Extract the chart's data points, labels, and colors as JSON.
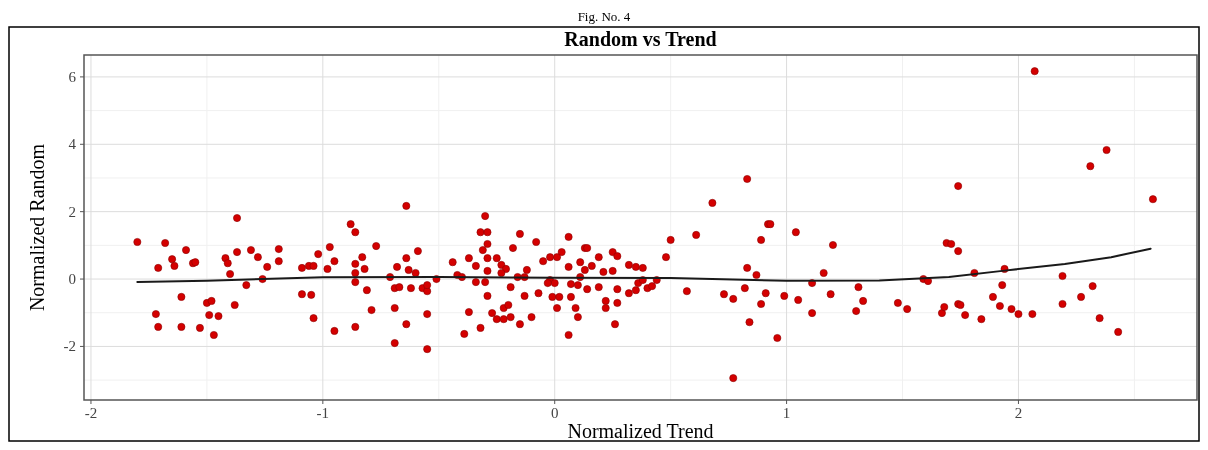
{
  "chart_data": {
    "type": "scatter",
    "title": "Random vs Trend",
    "xlabel": "Normalized Trend",
    "ylabel": "Normalized Random",
    "annotations": [
      "Fig. No. 4"
    ],
    "xlim": [
      -2.03,
      2.77
    ],
    "ylim": [
      -3.59,
      6.65
    ],
    "xticks": [
      -2,
      -1,
      0,
      1,
      2
    ],
    "yticks": [
      -2,
      0,
      2,
      4,
      6
    ],
    "grid": true,
    "marker": "circle",
    "series": [
      {
        "type": "scatter",
        "color": "#d40000",
        "x": [
          -1.8,
          -1.68,
          -1.71,
          -1.65,
          -1.64,
          -1.59,
          -1.56,
          -1.55,
          -1.61,
          -1.72,
          -1.71,
          -1.61,
          -1.53,
          -1.5,
          -1.48,
          -1.49,
          -1.45,
          -1.47,
          -1.37,
          -1.42,
          -1.41,
          -1.4,
          -1.37,
          -1.31,
          -1.28,
          -1.24,
          -1.19,
          -1.19,
          -1.26,
          -1.33,
          -1.38,
          -1.09,
          -1.05,
          -1.04,
          -0.95,
          -1.09,
          -1.06,
          -1.04,
          -1.02,
          -0.97,
          -0.98,
          -0.95,
          -0.88,
          -0.86,
          -0.83,
          -0.86,
          -0.82,
          -0.86,
          -0.86,
          -0.81,
          -0.79,
          -0.86,
          -0.77,
          -0.64,
          -0.59,
          -0.64,
          -0.68,
          -0.63,
          -0.6,
          -0.71,
          -0.69,
          -0.67,
          -0.62,
          -0.57,
          -0.55,
          -0.55,
          -0.51,
          -0.69,
          -0.64,
          -0.55,
          -0.69,
          -0.55,
          -0.44,
          -0.37,
          -0.34,
          -0.42,
          -0.4,
          -0.34,
          -0.3,
          -0.37,
          -0.39,
          -0.32,
          -0.3,
          -0.32,
          -0.29,
          -0.29,
          -0.31,
          -0.29,
          -0.25,
          -0.29,
          -0.23,
          -0.21,
          -0.23,
          -0.19,
          -0.29,
          -0.22,
          -0.2,
          -0.27,
          -0.25,
          -0.22,
          -0.19,
          -0.15,
          -0.18,
          -0.15,
          -0.08,
          -0.12,
          -0.16,
          -0.13,
          -0.13,
          -0.1,
          -0.07,
          -0.05,
          -0.02,
          0.03,
          0.01,
          0.06,
          -0.02,
          0.0,
          -0.03,
          -0.01,
          0.02,
          0.01,
          0.06,
          0.07,
          0.1,
          0.07,
          0.09,
          0.1,
          0.06,
          0.13,
          0.14,
          0.11,
          0.13,
          0.11,
          0.14,
          0.16,
          0.19,
          0.21,
          0.19,
          0.22,
          0.22,
          0.25,
          0.27,
          0.25,
          0.27,
          0.27,
          0.26,
          0.32,
          0.35,
          0.38,
          0.36,
          0.38,
          0.32,
          0.35,
          0.4,
          0.42,
          0.44,
          0.48,
          0.5,
          0.61,
          0.68,
          0.83,
          0.57,
          0.73,
          0.77,
          0.82,
          0.83,
          0.87,
          0.89,
          0.92,
          0.93,
          0.91,
          0.89,
          0.84,
          0.96,
          0.77,
          0.99,
          1.04,
          1.05,
          1.11,
          1.11,
          1.16,
          1.19,
          1.2,
          1.31,
          1.33,
          1.3,
          1.48,
          1.52,
          1.59,
          1.61,
          1.67,
          1.68,
          1.74,
          1.69,
          1.71,
          1.74,
          1.74,
          2.07,
          2.38,
          2.31,
          2.58,
          1.81,
          1.94,
          1.93,
          1.89,
          1.92,
          1.97,
          2.0,
          2.06,
          1.84,
          1.77,
          1.75,
          2.19,
          2.19,
          2.32,
          2.27,
          2.35,
          2.43
        ],
        "values": [
          1.1,
          1.07,
          0.33,
          0.59,
          0.39,
          0.86,
          0.47,
          0.5,
          -0.53,
          -1.04,
          -1.42,
          -1.42,
          -1.45,
          -0.71,
          -0.65,
          -1.07,
          -1.1,
          -1.66,
          1.81,
          0.62,
          0.47,
          0.15,
          0.8,
          0.86,
          0.65,
          0.36,
          0.53,
          0.89,
          0.0,
          -0.18,
          -0.77,
          -0.45,
          -0.47,
          -1.16,
          -1.54,
          0.33,
          0.39,
          0.39,
          0.74,
          0.95,
          0.3,
          0.53,
          1.63,
          1.39,
          0.65,
          0.45,
          0.3,
          0.18,
          -0.09,
          -0.33,
          -0.92,
          -1.42,
          0.98,
          2.17,
          0.83,
          0.62,
          0.36,
          0.27,
          0.18,
          0.06,
          -0.27,
          -0.24,
          -0.27,
          -0.27,
          -0.36,
          -0.18,
          0.0,
          -0.86,
          -1.34,
          -1.04,
          -1.9,
          -2.08,
          0.5,
          0.62,
          0.39,
          0.12,
          0.06,
          -0.09,
          -0.09,
          -0.98,
          -1.63,
          -1.45,
          1.87,
          1.39,
          1.39,
          1.04,
          0.86,
          0.62,
          0.62,
          0.24,
          0.42,
          0.3,
          0.18,
          -0.24,
          -0.5,
          -0.86,
          -0.77,
          -1.01,
          -1.19,
          -1.19,
          -1.13,
          -1.34,
          0.92,
          1.34,
          1.1,
          0.27,
          0.06,
          0.06,
          -0.5,
          -1.13,
          -0.42,
          0.53,
          0.65,
          0.8,
          0.65,
          1.25,
          -0.03,
          -0.12,
          -0.12,
          -0.53,
          -0.53,
          -0.86,
          0.36,
          -0.15,
          -0.18,
          -0.53,
          -0.86,
          -1.13,
          -1.66,
          0.92,
          0.92,
          0.5,
          0.27,
          0.06,
          -0.3,
          0.39,
          0.65,
          0.21,
          -0.24,
          -0.65,
          -0.86,
          0.8,
          0.68,
          0.24,
          -0.3,
          -0.71,
          -1.34,
          0.42,
          0.36,
          0.33,
          -0.12,
          -0.03,
          -0.42,
          -0.33,
          -0.27,
          -0.21,
          -0.03,
          0.65,
          1.16,
          1.31,
          2.26,
          2.97,
          -0.36,
          -0.45,
          -0.59,
          -0.27,
          0.33,
          0.12,
          1.16,
          1.63,
          1.63,
          -0.42,
          -0.74,
          -1.28,
          -1.75,
          -2.94,
          -0.5,
          1.39,
          -0.62,
          -0.12,
          -1.01,
          0.18,
          -0.45,
          1.01,
          -0.24,
          -0.65,
          -0.95,
          -0.71,
          -0.89,
          0.0,
          -0.06,
          -1.01,
          -0.83,
          -0.74,
          1.07,
          1.04,
          0.83,
          2.76,
          6.17,
          3.83,
          3.35,
          2.37,
          0.18,
          0.3,
          -0.18,
          -0.53,
          -0.8,
          -0.89,
          -1.04,
          -1.04,
          -1.19,
          -1.07,
          -0.77,
          0.09,
          -0.74,
          -0.21,
          -0.53,
          -1.16,
          -1.57
        ]
      },
      {
        "type": "line",
        "color": "#1a1a1a",
        "marker": "none",
        "x": [
          -1.8,
          -1.5,
          -1.0,
          -0.5,
          0,
          0.5,
          1.0,
          1.4,
          1.7,
          1.94,
          2.2,
          2.4,
          2.57
        ],
        "values": [
          -0.09,
          -0.05,
          0.05,
          0.06,
          0.04,
          0.03,
          -0.05,
          -0.04,
          0.06,
          0.25,
          0.45,
          0.65,
          0.9
        ]
      }
    ]
  }
}
